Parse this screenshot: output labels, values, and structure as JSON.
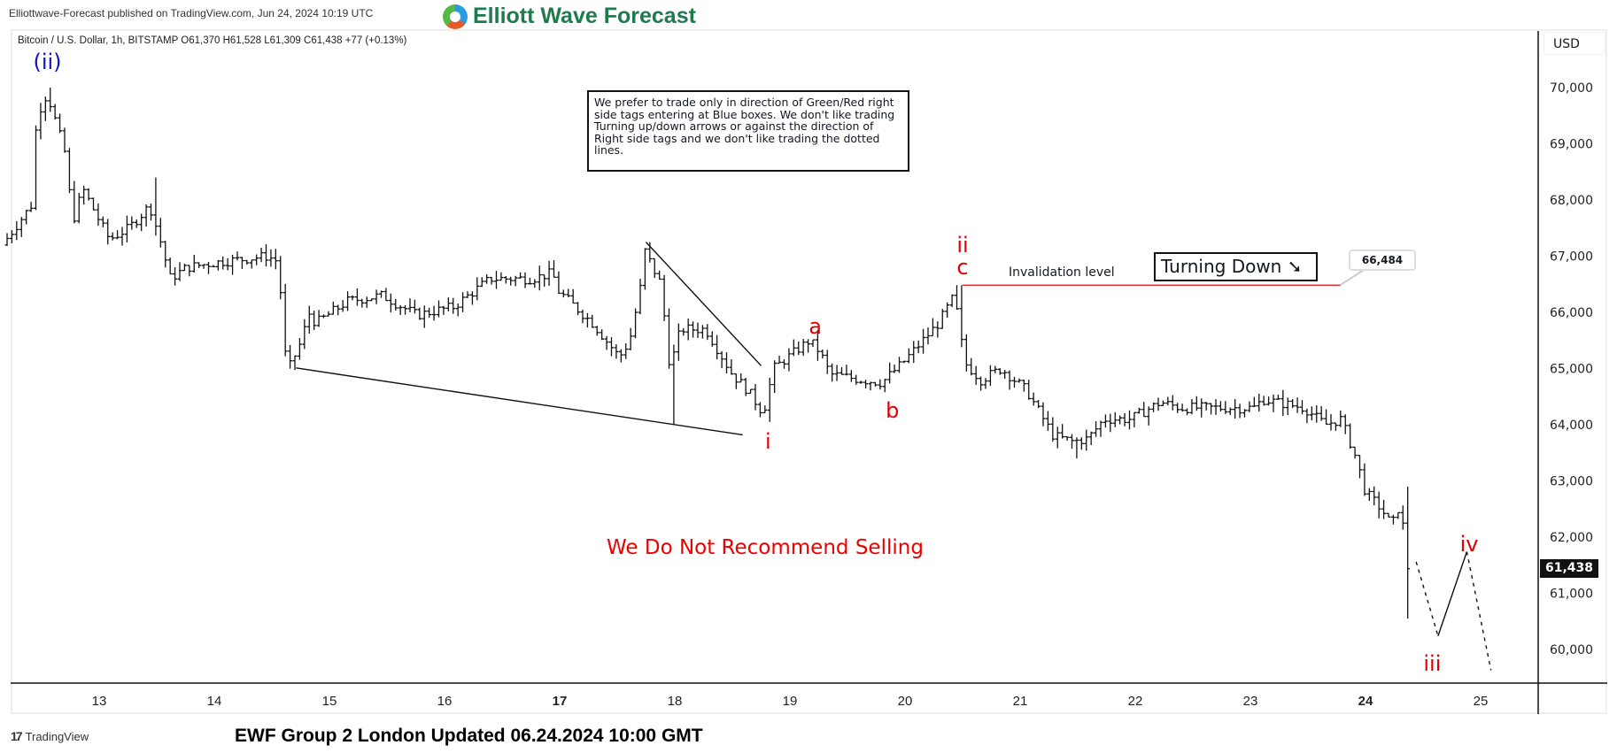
{
  "header": {
    "published": "Elliottwave-Forecast published on TradingView.com, Jun 24, 2024 10:19 UTC",
    "logo_text": "Elliott Wave Forecast",
    "symbol_line": "Bitcoin / U.S. Dollar, 1h, BITSTAMP  O61,370  H61,528  L61,309  C61,438  +77 (+0.13%)"
  },
  "footer": {
    "tradingview": "TradingView",
    "update": "EWF Group 2 London Updated 06.24.2024 10:00 GMT"
  },
  "annotations": {
    "note": "We prefer to trade only in direction of Green/Red right side tags entering at Blue boxes. We don't like trading Turning up/down arrows or against the direction of Right side tags and we don't like trading the dotted lines.",
    "turning": "Turning Down",
    "turning_icon": "arrow-down-right",
    "invalidation_label": "Invalidation level",
    "invalidation_value": "66,484",
    "warning": "We Do Not Recommend Selling",
    "last_price": "61,438",
    "currency": "USD",
    "wave_labels": [
      {
        "text": "(ii)",
        "day": 12.55,
        "price": 70450,
        "color": "#1010cc"
      },
      {
        "text": "i",
        "day": 18.81,
        "price": 63700,
        "color": "#e00000"
      },
      {
        "text": "a",
        "day": 19.22,
        "price": 65750,
        "color": "#e00000"
      },
      {
        "text": "b",
        "day": 19.89,
        "price": 64250,
        "color": "#e00000"
      },
      {
        "text": "ii",
        "day": 20.5,
        "price": 67200,
        "color": "#e00000"
      },
      {
        "text": "c",
        "day": 20.5,
        "price": 66800,
        "color": "#e00000"
      },
      {
        "text": "iii",
        "day": 24.58,
        "price": 59750,
        "color": "#e00000"
      },
      {
        "text": "iv",
        "day": 24.9,
        "price": 61880,
        "color": "#e00000"
      }
    ]
  },
  "chart_data": {
    "type": "ohlc",
    "title": "Bitcoin / U.S. Dollar, 1h, BITSTAMP",
    "ylabel": "USD",
    "ylim": [
      59500,
      70800
    ],
    "yticks": [
      60000,
      61000,
      62000,
      63000,
      64000,
      65000,
      66000,
      67000,
      68000,
      69000,
      70000
    ],
    "ytick_labels": [
      "60,000",
      "61,000",
      "62,000",
      "63,000",
      "64,000",
      "65,000",
      "66,000",
      "67,000",
      "68,000",
      "69,000",
      "70,000"
    ],
    "xticks": [
      13,
      14,
      15,
      16,
      17,
      18,
      19,
      20,
      21,
      22,
      23,
      24,
      25
    ],
    "xtick_labels": [
      "13",
      "14",
      "15",
      "16",
      "17",
      "18",
      "19",
      "20",
      "21",
      "22",
      "23",
      "24",
      "25"
    ],
    "bold_xticks": [
      "17",
      "24"
    ],
    "price_path": [
      [
        12.2,
        67200
      ],
      [
        12.45,
        67900
      ],
      [
        12.5,
        69500
      ],
      [
        12.59,
        69900
      ],
      [
        12.75,
        68800
      ],
      [
        12.81,
        67600
      ],
      [
        12.9,
        68200
      ],
      [
        13.05,
        67600
      ],
      [
        13.13,
        67300
      ],
      [
        13.3,
        67500
      ],
      [
        13.48,
        67900
      ],
      [
        13.57,
        67300
      ],
      [
        13.66,
        66600
      ],
      [
        13.8,
        66800
      ],
      [
        14.1,
        66900
      ],
      [
        14.3,
        66950
      ],
      [
        14.5,
        67000
      ],
      [
        14.6,
        66900
      ],
      [
        14.65,
        65300
      ],
      [
        14.7,
        65050
      ],
      [
        14.78,
        65400
      ],
      [
        14.87,
        66000
      ],
      [
        14.92,
        65800
      ],
      [
        15.2,
        66200
      ],
      [
        15.5,
        66300
      ],
      [
        15.8,
        65950
      ],
      [
        16.12,
        66100
      ],
      [
        16.44,
        66600
      ],
      [
        16.8,
        66600
      ],
      [
        16.98,
        66700
      ],
      [
        17.02,
        66400
      ],
      [
        17.33,
        65800
      ],
      [
        17.56,
        65200
      ],
      [
        17.65,
        65500
      ],
      [
        17.74,
        66400
      ],
      [
        17.78,
        67100
      ],
      [
        17.92,
        66500
      ],
      [
        18.0,
        65000
      ],
      [
        18.09,
        65700
      ],
      [
        18.31,
        65700
      ],
      [
        18.54,
        64900
      ],
      [
        18.68,
        64600
      ],
      [
        18.81,
        64200
      ],
      [
        18.9,
        65000
      ],
      [
        19.21,
        65500
      ],
      [
        19.3,
        65300
      ],
      [
        19.39,
        64900
      ],
      [
        19.66,
        64800
      ],
      [
        19.84,
        64750
      ],
      [
        20.02,
        65100
      ],
      [
        20.33,
        65800
      ],
      [
        20.47,
        66300
      ],
      [
        20.56,
        65100
      ],
      [
        20.7,
        64800
      ],
      [
        20.88,
        65000
      ],
      [
        21.1,
        64600
      ],
      [
        21.33,
        63800
      ],
      [
        21.5,
        63700
      ],
      [
        21.63,
        63750
      ],
      [
        21.77,
        64100
      ],
      [
        22.0,
        64100
      ],
      [
        22.26,
        64400
      ],
      [
        22.44,
        64300
      ],
      [
        23.07,
        64300
      ],
      [
        23.15,
        64450
      ],
      [
        23.51,
        64300
      ],
      [
        23.69,
        64000
      ],
      [
        23.83,
        64100
      ],
      [
        23.96,
        63400
      ],
      [
        24.04,
        62800
      ],
      [
        24.18,
        62500
      ],
      [
        24.27,
        62200
      ],
      [
        24.36,
        62700
      ],
      [
        24.38,
        61200
      ],
      [
        24.4,
        61438
      ]
    ],
    "spikes": [
      [
        12.59,
        70000
      ],
      [
        13.48,
        68400
      ],
      [
        17.78,
        67250
      ],
      [
        18.0,
        64000
      ],
      [
        18.81,
        64050
      ],
      [
        20.47,
        66484
      ],
      [
        21.5,
        63400
      ],
      [
        24.36,
        62900
      ],
      [
        24.38,
        60550
      ]
    ],
    "trendlines": [
      {
        "from": [
          14.71,
          65010
        ],
        "to": [
          18.59,
          63820
        ],
        "style": "solid",
        "color": "#111111"
      },
      {
        "from": [
          17.75,
          67250
        ],
        "to": [
          18.75,
          65050
        ],
        "style": "solid",
        "color": "#111111"
      },
      {
        "from": [
          20.5,
          66484
        ],
        "to": [
          23.78,
          66484
        ],
        "style": "solid",
        "color": "#dd2222"
      },
      {
        "from": [
          24.44,
          61560
        ],
        "to": [
          24.63,
          60240
        ],
        "style": "dotted",
        "color": "#111111"
      },
      {
        "from": [
          24.63,
          60240
        ],
        "to": [
          24.88,
          61740
        ],
        "style": "solid",
        "color": "#111111"
      },
      {
        "from": [
          24.88,
          61740
        ],
        "to": [
          25.09,
          59630
        ],
        "style": "dotted",
        "color": "#111111"
      }
    ],
    "last_close": 61438
  }
}
